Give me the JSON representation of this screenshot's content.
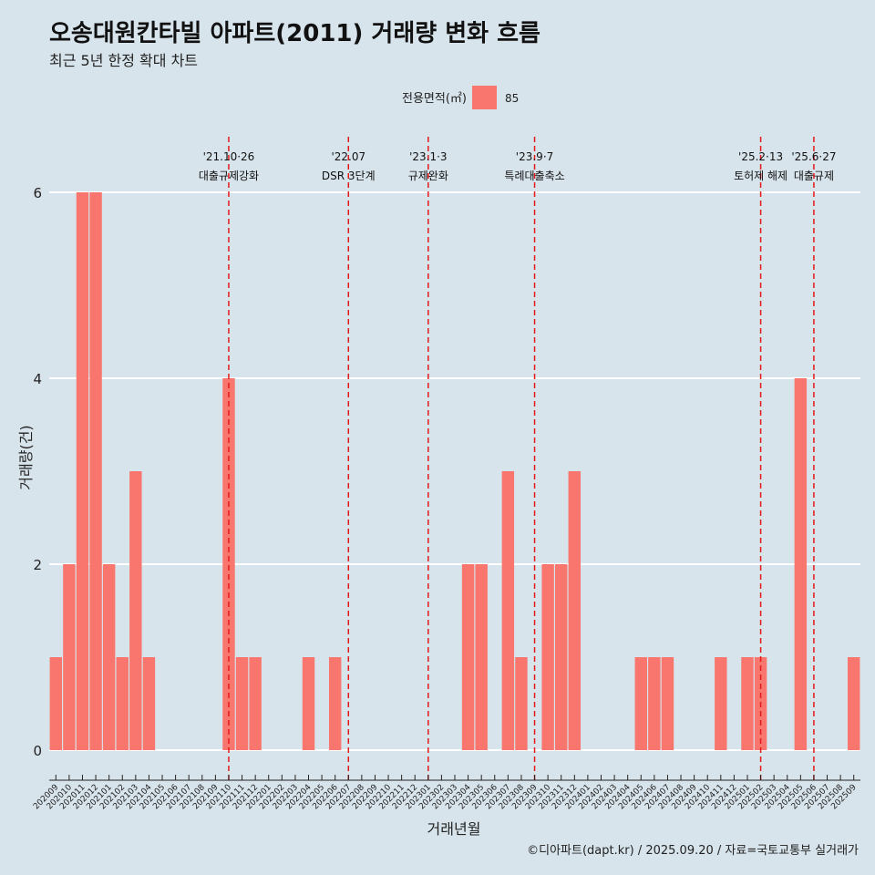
{
  "header": {
    "title": "오송대원칸타빌 아파트(2011) 거래량 변화 흐름",
    "subtitle": "최근 5년 한정 확대 차트"
  },
  "caption": "©디아파트(dapt.kr) / 2025.09.20 / 자료=국토교통부 실거래가",
  "colors": {
    "bar": "#f8766d",
    "background": "#d8e4eb",
    "grid": "#ffffff",
    "event_line": "#e31a1c"
  },
  "chart_data": {
    "type": "bar",
    "xlabel": "거래년월",
    "ylabel": "거래량(건)",
    "ylim": [
      0,
      6.5
    ],
    "yticks": [
      0,
      2,
      4,
      6
    ],
    "legend": {
      "title": "전용면적(㎡)",
      "placement": "top",
      "entries": [
        "85"
      ]
    },
    "categories": [
      "202009",
      "202010",
      "202011",
      "202012",
      "202101",
      "202102",
      "202103",
      "202104",
      "202105",
      "202106",
      "202107",
      "202108",
      "202109",
      "202110",
      "202111",
      "202112",
      "202201",
      "202202",
      "202203",
      "202204",
      "202205",
      "202206",
      "202207",
      "202208",
      "202209",
      "202210",
      "202211",
      "202212",
      "202301",
      "202302",
      "202303",
      "202304",
      "202305",
      "202306",
      "202307",
      "202308",
      "202309",
      "202310",
      "202311",
      "202312",
      "202401",
      "202402",
      "202403",
      "202404",
      "202405",
      "202406",
      "202407",
      "202408",
      "202409",
      "202410",
      "202411",
      "202412",
      "202501",
      "202502",
      "202503",
      "202504",
      "202505",
      "202506",
      "202507",
      "202508",
      "202509"
    ],
    "series": [
      {
        "name": "85",
        "values": [
          1,
          2,
          6,
          6,
          2,
          1,
          3,
          1,
          0,
          0,
          0,
          0,
          0,
          4,
          1,
          1,
          0,
          0,
          0,
          1,
          0,
          1,
          0,
          0,
          0,
          0,
          0,
          0,
          0,
          0,
          0,
          2,
          2,
          0,
          3,
          1,
          0,
          2,
          2,
          3,
          0,
          0,
          0,
          0,
          1,
          1,
          1,
          0,
          0,
          0,
          1,
          0,
          1,
          1,
          0,
          0,
          4,
          0,
          0,
          0,
          1
        ]
      }
    ],
    "events": [
      {
        "x": "202110",
        "date": "'21.10·26",
        "label": "대출규제강화"
      },
      {
        "x": "202207",
        "date": "'22.07",
        "label": "DSR 3단계"
      },
      {
        "x": "202301",
        "date": "'23.1·3",
        "label": "규제완화"
      },
      {
        "x": "202309",
        "date": "'23.9·7",
        "label": "특례대출축소"
      },
      {
        "x": "202502",
        "date": "'25.2·13",
        "label": "토허제 해제"
      },
      {
        "x": "202506",
        "date": "'25.6·27",
        "label": "대출규제"
      }
    ]
  }
}
